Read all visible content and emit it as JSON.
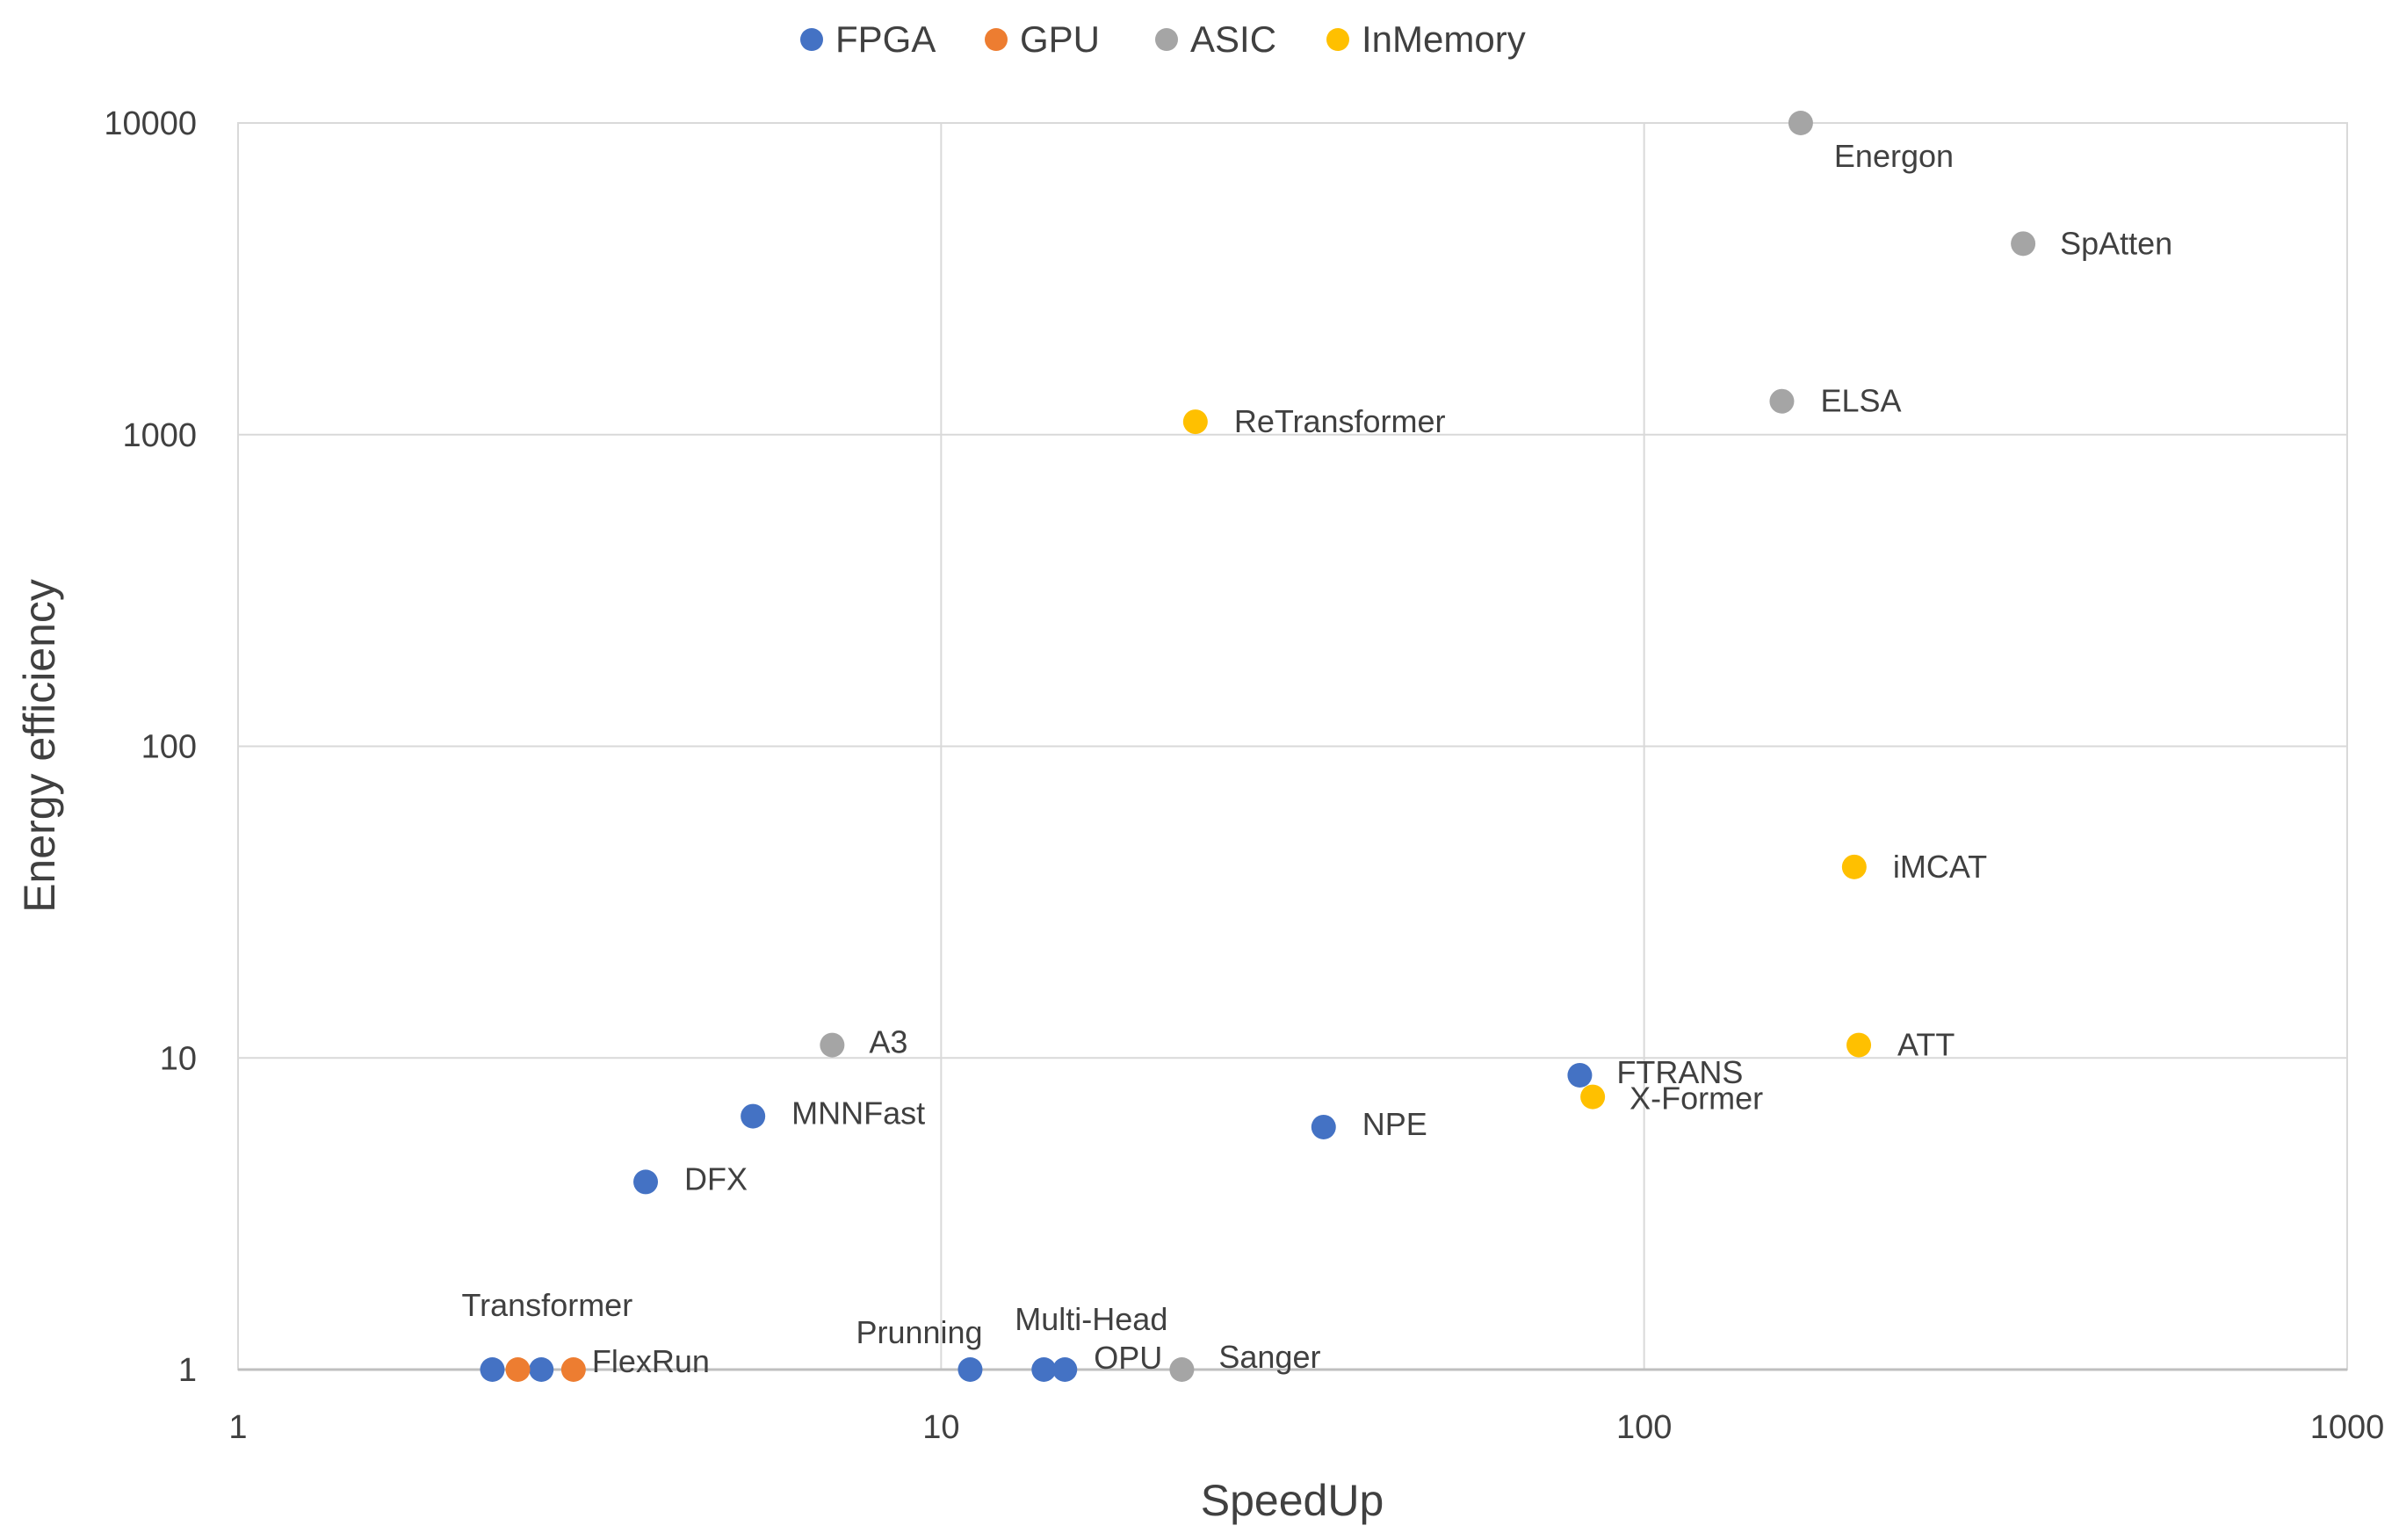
{
  "chart_data": {
    "type": "scatter",
    "xlabel": "SpeedUp",
    "ylabel": "Energy efficiency",
    "x_scale": "log",
    "y_scale": "log",
    "xlim": [
      1,
      1000
    ],
    "ylim": [
      1,
      10000
    ],
    "x_ticks": [
      "1",
      "10",
      "100",
      "1000"
    ],
    "y_ticks": [
      "1",
      "10",
      "100",
      "1000",
      "10000"
    ],
    "grid": true,
    "legend_position": "top",
    "series": [
      {
        "name": "FPGA",
        "color": "#4472C4",
        "points": [
          {
            "x": 2.3,
            "y": 1,
            "label": "Transformer"
          },
          {
            "x": 2.7,
            "y": 1,
            "label": ""
          },
          {
            "x": 3.8,
            "y": 4.0,
            "label": "DFX"
          },
          {
            "x": 5.4,
            "y": 6.5,
            "label": "MNNFast"
          },
          {
            "x": 11,
            "y": 1,
            "label": "Prunning"
          },
          {
            "x": 14,
            "y": 1,
            "label": "Multi-Head"
          },
          {
            "x": 15,
            "y": 1,
            "label": "OPU"
          },
          {
            "x": 35,
            "y": 6.0,
            "label": "NPE"
          },
          {
            "x": 81,
            "y": 8.8,
            "label": "FTRANS"
          }
        ]
      },
      {
        "name": "GPU",
        "color": "#ED7D31",
        "points": [
          {
            "x": 2.5,
            "y": 1,
            "label": ""
          },
          {
            "x": 3.0,
            "y": 1,
            "label": "FlexRun"
          }
        ]
      },
      {
        "name": "ASIC",
        "color": "#A5A5A5",
        "points": [
          {
            "x": 7.0,
            "y": 11,
            "label": "A3"
          },
          {
            "x": 22,
            "y": 1,
            "label": "Sanger"
          },
          {
            "x": 167,
            "y": 10000,
            "label": "Energon"
          },
          {
            "x": 346,
            "y": 4100,
            "label": "SpAtten"
          },
          {
            "x": 157,
            "y": 1280,
            "label": "ELSA"
          }
        ]
      },
      {
        "name": "InMemory",
        "color": "#FFC000",
        "points": [
          {
            "x": 23,
            "y": 1100,
            "label": "ReTransformer"
          },
          {
            "x": 199,
            "y": 41,
            "label": "iMCAT"
          },
          {
            "x": 202,
            "y": 11,
            "label": "ATT"
          },
          {
            "x": 84.5,
            "y": 7.5,
            "label": "X-Former"
          }
        ]
      }
    ]
  }
}
